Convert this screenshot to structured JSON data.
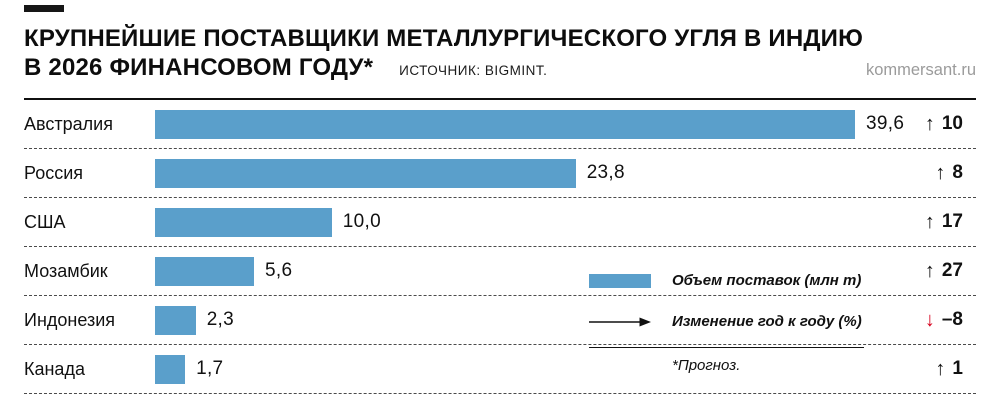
{
  "header": {
    "title_line1": "КРУПНЕЙШИЕ ПОСТАВЩИКИ МЕТАЛЛУРГИЧЕСКОГО УГЛЯ В ИНДИЮ",
    "title_line2": "В 2026 ФИНАНСОВОМ ГОДУ*",
    "source": "ИСТОЧНИК: BIGMINT.",
    "site": "kommersant.ru"
  },
  "colors": {
    "bar": "#5a9fcb",
    "negative": "#d6001c"
  },
  "legend": {
    "volume": "Объем поставок (млн т)",
    "change": "Изменение год к году (%)",
    "footnote": "*Прогноз."
  },
  "chart_data": {
    "type": "bar",
    "orientation": "horizontal",
    "title": "КРУПНЕЙШИЕ ПОСТАВЩИКИ МЕТАЛЛУРГИЧЕСКОГО УГЛЯ В ИНДИЮ В 2026 ФИНАНСОВОМ ГОДУ*",
    "source": "BIGMINT",
    "unit": "млн т",
    "xlim": [
      0,
      40
    ],
    "grid": false,
    "legend_position": "right-bottom",
    "categories": [
      "Австралия",
      "Россия",
      "США",
      "Мозамбик",
      "Индонезия",
      "Канада"
    ],
    "values": [
      39.6,
      23.8,
      10.0,
      5.6,
      2.3,
      1.7
    ],
    "yoy_change_pct": [
      10,
      8,
      17,
      27,
      -8,
      1
    ],
    "rows": [
      {
        "country": "Австралия",
        "value": 39.6,
        "value_label": "39,6",
        "change_pct": 10,
        "change_label": "10",
        "direction": "up"
      },
      {
        "country": "Россия",
        "value": 23.8,
        "value_label": "23,8",
        "change_pct": 8,
        "change_label": "8",
        "direction": "up"
      },
      {
        "country": "США",
        "value": 10.0,
        "value_label": "10,0",
        "change_pct": 17,
        "change_label": "17",
        "direction": "up"
      },
      {
        "country": "Мозамбик",
        "value": 5.6,
        "value_label": "5,6",
        "change_pct": 27,
        "change_label": "27",
        "direction": "up"
      },
      {
        "country": "Индонезия",
        "value": 2.3,
        "value_label": "2,3",
        "change_pct": -8,
        "change_label": "–8",
        "direction": "down"
      },
      {
        "country": "Канада",
        "value": 1.7,
        "value_label": "1,7",
        "change_pct": 1,
        "change_label": "1",
        "direction": "up"
      }
    ]
  }
}
